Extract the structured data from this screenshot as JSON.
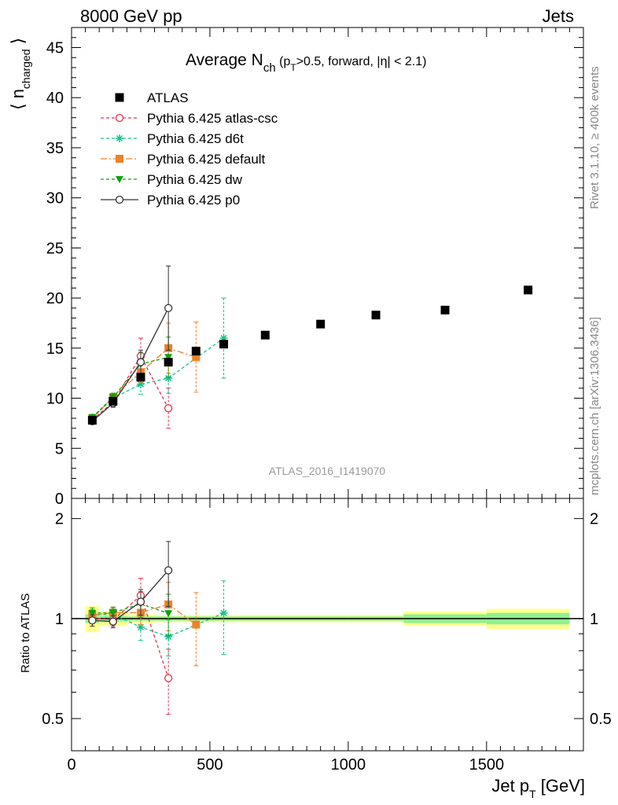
{
  "header": {
    "left": "8000 GeV pp",
    "right": "Jets"
  },
  "side_labels": {
    "rivet": "Rivet 3.1.10, ≥ 400k events",
    "mcplots": "mcplots.cern.ch [arXiv:1306.3436]"
  },
  "chart_data": {
    "type": "scatter",
    "title": "Average N_ch (p_T>0.5, forward, |η| < 2.1)",
    "analysis_tag": "ATLAS_2016_I1419070",
    "xlabel": "Jet p_T [GeV]",
    "ylabel": "⟨ n_charged ⟩",
    "ratio_ylabel": "Ratio to ATLAS",
    "xlim": [
      0,
      1850
    ],
    "ylim": [
      0,
      47
    ],
    "ratio_ylim": [
      0.4,
      2.3
    ],
    "ratio_scale": "log",
    "legend_position": "top-left",
    "x_ticks": [
      0,
      500,
      1000,
      1500
    ],
    "y_ticks": [
      0,
      5,
      10,
      15,
      20,
      25,
      30,
      35,
      40,
      45
    ],
    "ratio_ticks": [
      0.5,
      1,
      2
    ],
    "data": {
      "name": "ATLAS",
      "color": "#000000",
      "x": [
        75,
        150,
        250,
        350,
        450,
        550,
        700,
        900,
        1100,
        1350,
        1650
      ],
      "xerr": [
        25,
        50,
        50,
        50,
        50,
        50,
        100,
        100,
        100,
        150,
        150
      ],
      "y": [
        7.8,
        9.7,
        12.1,
        13.6,
        14.7,
        15.4,
        16.3,
        17.4,
        18.3,
        18.8,
        20.8
      ],
      "band_stat": [
        0.03,
        0.02,
        0.015,
        0.015,
        0.015,
        0.015,
        0.015,
        0.015,
        0.015,
        0.03,
        0.04
      ],
      "band_total": [
        0.09,
        0.05,
        0.03,
        0.025,
        0.025,
        0.025,
        0.025,
        0.025,
        0.025,
        0.05,
        0.07
      ]
    },
    "series": [
      {
        "name": "Pythia 6.425 atlas-csc",
        "color": "#e8304c",
        "marker": "open-circle",
        "dash": "4,3",
        "x": [
          75,
          150,
          250,
          350
        ],
        "y": [
          7.85,
          9.6,
          14.2,
          9.0
        ],
        "err": [
          0.3,
          0.4,
          1.8,
          2.0
        ]
      },
      {
        "name": "Pythia 6.425 d6t",
        "color": "#19c08c",
        "marker": "star",
        "dash": "4,3",
        "x": [
          75,
          150,
          250,
          350,
          550
        ],
        "y": [
          8.0,
          10.0,
          11.4,
          12.0,
          16.0
        ],
        "err": [
          0.3,
          0.4,
          1.0,
          1.5,
          4.0
        ]
      },
      {
        "name": "Pythia 6.425 default",
        "color": "#f08028",
        "marker": "square",
        "dash": "8,3,2,3",
        "x": [
          75,
          150,
          250,
          350,
          450
        ],
        "y": [
          8.0,
          10.1,
          12.6,
          15.0,
          14.1
        ],
        "err": [
          0.3,
          0.4,
          1.0,
          2.5,
          3.5
        ]
      },
      {
        "name": "Pythia 6.425 dw",
        "color": "#10a010",
        "marker": "triangle-down",
        "dash": "4,3",
        "x": [
          75,
          150,
          250,
          350
        ],
        "y": [
          8.1,
          10.1,
          13.4,
          14.1
        ],
        "err": [
          0.3,
          0.4,
          1.2,
          2.0
        ]
      },
      {
        "name": "Pythia 6.425 p0",
        "color": "#333333",
        "marker": "open-circle",
        "dash": "",
        "x": [
          75,
          150,
          250,
          350
        ],
        "y": [
          7.7,
          9.5,
          13.6,
          19.0
        ],
        "err": [
          0.3,
          0.4,
          1.2,
          4.2
        ]
      }
    ]
  }
}
